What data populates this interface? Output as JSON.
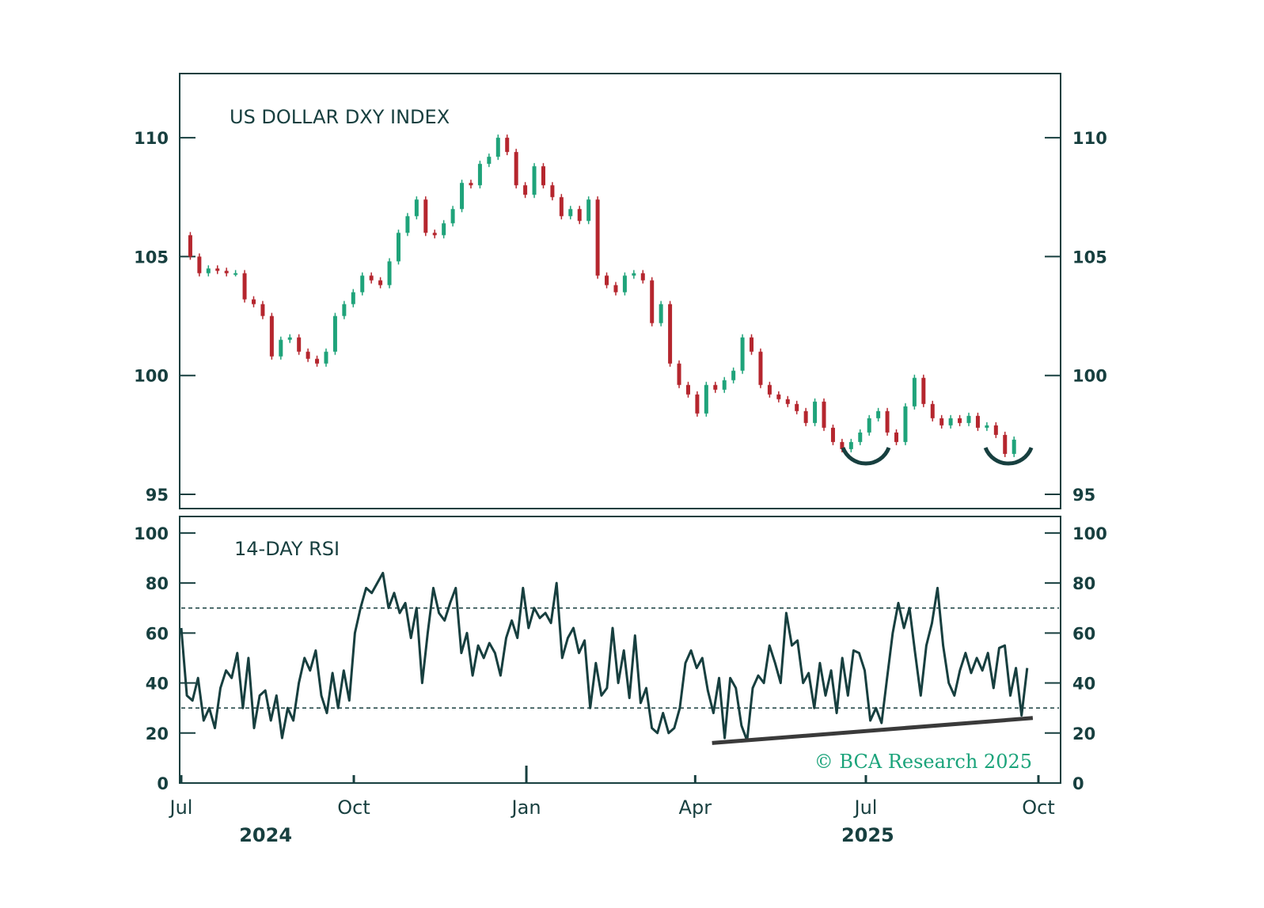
{
  "colors": {
    "ink": "#173f3f",
    "up": "#1fa37a",
    "down": "#b5262e",
    "copyright": "#1aa37a",
    "trend": "#3a3a3a"
  },
  "copyright": "© BCA Research 2025",
  "chart_data": [
    {
      "type": "candlestick",
      "title": "US DOLLAR DXY INDEX",
      "ylim": [
        94.4,
        112.7
      ],
      "yticks": [
        95,
        100,
        105,
        110
      ],
      "ytick_labels": [
        "95",
        "100",
        "105",
        "110"
      ],
      "date_range": [
        "2024-07-01",
        "2025-09-18"
      ],
      "closes": [
        105.9,
        105.0,
        104.3,
        104.5,
        104.4,
        104.3,
        104.3,
        103.2,
        103.0,
        102.5,
        100.8,
        101.5,
        101.6,
        101.0,
        100.7,
        100.5,
        101.0,
        102.5,
        103.0,
        103.5,
        104.2,
        104.0,
        103.8,
        104.8,
        106.0,
        106.7,
        107.4,
        106.0,
        105.9,
        106.4,
        107.0,
        108.1,
        108.0,
        108.9,
        109.2,
        110.0,
        109.4,
        108.0,
        107.6,
        108.8,
        108.0,
        107.5,
        106.7,
        107.0,
        106.5,
        107.4,
        104.2,
        103.8,
        103.5,
        104.2,
        104.3,
        104.0,
        102.2,
        103.0,
        100.5,
        99.6,
        99.2,
        98.4,
        99.6,
        99.4,
        99.8,
        100.2,
        101.6,
        101.0,
        99.6,
        99.2,
        99.0,
        98.8,
        98.5,
        98.0,
        98.9,
        97.8,
        97.2,
        96.9,
        97.2,
        97.6,
        98.2,
        98.5,
        97.6,
        97.2,
        98.7,
        99.9,
        98.8,
        98.2,
        97.9,
        98.2,
        98.0,
        98.3,
        97.8,
        97.9,
        97.5,
        96.7,
        97.3
      ],
      "annotations": [
        {
          "type": "rounded-bottom",
          "date": "2025-07-01"
        },
        {
          "type": "rounded-bottom",
          "date": "2025-09-15"
        }
      ]
    },
    {
      "type": "line",
      "title": "14-DAY RSI",
      "ylim": [
        0,
        106.6
      ],
      "yticks": [
        0,
        20,
        40,
        60,
        80,
        100
      ],
      "ytick_labels": [
        "0",
        "20",
        "40",
        "60",
        "80",
        "100"
      ],
      "reference_lines": [
        30,
        70
      ],
      "date_range": [
        "2024-07-01",
        "2025-09-25"
      ],
      "values": [
        62,
        35,
        33,
        42,
        25,
        30,
        22,
        38,
        45,
        42,
        52,
        30,
        50,
        22,
        35,
        37,
        25,
        35,
        18,
        30,
        25,
        40,
        50,
        45,
        53,
        35,
        28,
        44,
        30,
        45,
        33,
        60,
        70,
        78,
        76,
        80,
        84,
        70,
        76,
        68,
        72,
        58,
        70,
        40,
        60,
        78,
        68,
        65,
        72,
        78,
        52,
        60,
        43,
        55,
        50,
        56,
        52,
        43,
        58,
        65,
        58,
        78,
        62,
        70,
        66,
        68,
        64,
        80,
        50,
        58,
        62,
        52,
        57,
        30,
        48,
        35,
        38,
        62,
        40,
        53,
        34,
        59,
        32,
        38,
        22,
        20,
        28,
        20,
        22,
        30,
        48,
        53,
        46,
        50,
        37,
        28,
        42,
        18,
        42,
        38,
        23,
        17,
        38,
        43,
        40,
        55,
        48,
        40,
        68,
        55,
        57,
        40,
        44,
        30,
        48,
        35,
        45,
        28,
        50,
        35,
        53,
        52,
        45,
        25,
        30,
        24,
        42,
        60,
        72,
        62,
        70,
        52,
        35,
        55,
        64,
        78,
        55,
        40,
        35,
        45,
        52,
        44,
        50,
        45,
        52,
        38,
        54,
        55,
        35,
        46,
        27,
        46
      ],
      "trendline": {
        "from": [
          "2025-04-10",
          16
        ],
        "to": [
          "2025-09-28",
          26
        ]
      }
    }
  ],
  "xaxis": {
    "range": [
      "2024-07-01",
      "2025-10-01"
    ],
    "ticks": [
      {
        "date": "2024-07-01",
        "label": "Jul"
      },
      {
        "date": "2024-10-01",
        "label": "Oct"
      },
      {
        "date": "2025-01-01",
        "label": "Jan"
      },
      {
        "date": "2025-04-01",
        "label": "Apr"
      },
      {
        "date": "2025-07-01",
        "label": "Jul"
      },
      {
        "date": "2025-10-01",
        "label": "Oct"
      }
    ],
    "years": [
      {
        "label": "2024",
        "date": "2024-08-15"
      },
      {
        "label": "2025",
        "date": "2025-07-02"
      }
    ]
  }
}
